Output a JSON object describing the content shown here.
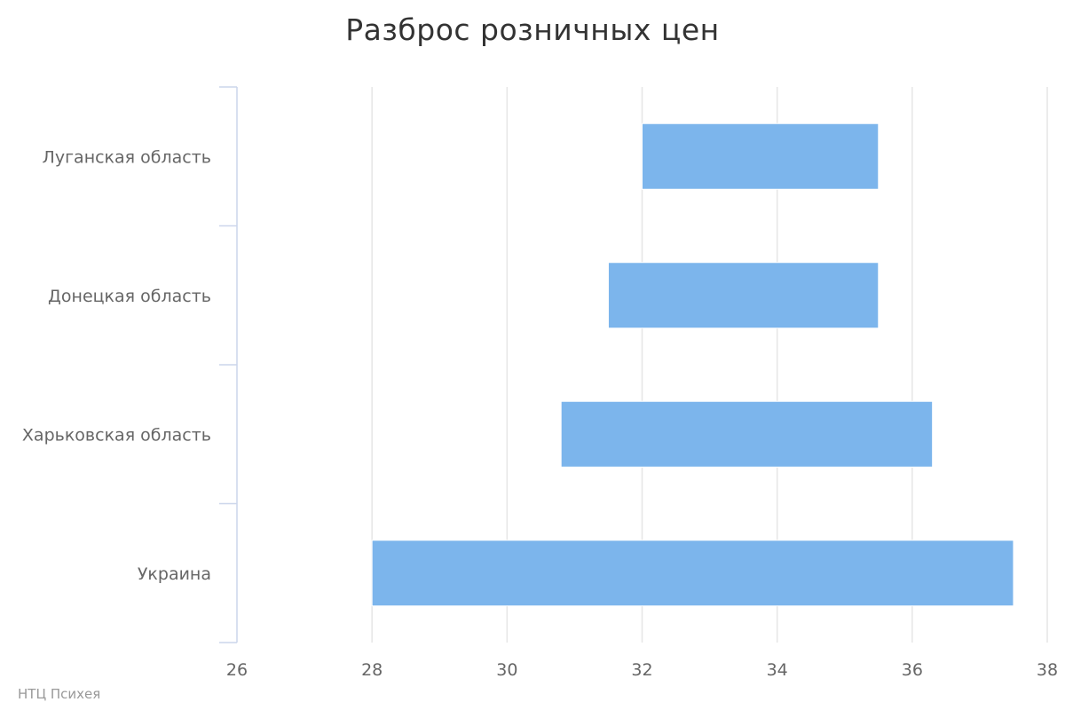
{
  "chart_data": {
    "type": "bar",
    "orientation": "horizontal",
    "variant": "range",
    "title": "Разброс розничных цен",
    "categories": [
      "Луганская область",
      "Донецкая область",
      "Харьковская область",
      "Украина"
    ],
    "series": [
      {
        "color": "#7cb5ec",
        "low": [
          32.0,
          31.5,
          30.8,
          28.0
        ],
        "high": [
          35.5,
          35.5,
          36.3,
          37.5
        ]
      }
    ],
    "xlim": [
      26,
      38
    ],
    "xticks": [
      "26",
      "28",
      "30",
      "32",
      "34",
      "36",
      "38"
    ],
    "grid": true,
    "legend": "none"
  },
  "credits": "НТЦ Психея"
}
